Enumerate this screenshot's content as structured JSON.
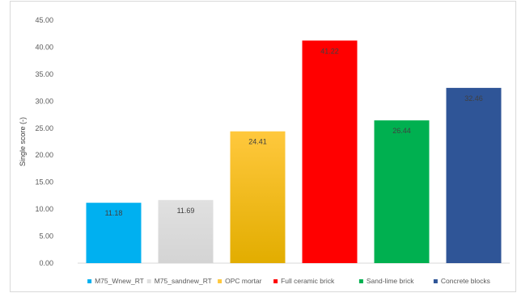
{
  "chart_data": {
    "type": "bar",
    "ylabel": "Single score (-)",
    "ylim": [
      0,
      45
    ],
    "ytick_step": 5,
    "ytick_labels": [
      "0.00",
      "5.00",
      "10.00",
      "15.00",
      "20.00",
      "25.00",
      "30.00",
      "35.00",
      "40.00",
      "45.00"
    ],
    "grid": false,
    "legend_position": "bottom",
    "series": [
      {
        "name": "M75_Wnew_RT",
        "value": 11.18,
        "label": "11.18",
        "color": "#00b0f0",
        "color_dark": "#00b0f0"
      },
      {
        "name": "M75_sandnew_RT",
        "value": 11.69,
        "label": "11.69",
        "color": "#e0e0e0",
        "color_dark": "#d4d4d4"
      },
      {
        "name": "OPC mortar",
        "value": 24.41,
        "label": "24.41",
        "color": "#ffc83d",
        "color_dark": "#e2ad00"
      },
      {
        "name": "Full ceramic brick",
        "value": 41.22,
        "label": "41.22",
        "color": "#ff0000",
        "color_dark": "#ff0000"
      },
      {
        "name": "Sand-lime brick",
        "value": 26.44,
        "label": "26.44",
        "color": "#00b050",
        "color_dark": "#00b050"
      },
      {
        "name": "Concrete blocks",
        "value": 32.46,
        "label": "32.46",
        "color": "#2f5597",
        "color_dark": "#2f5597"
      }
    ]
  }
}
